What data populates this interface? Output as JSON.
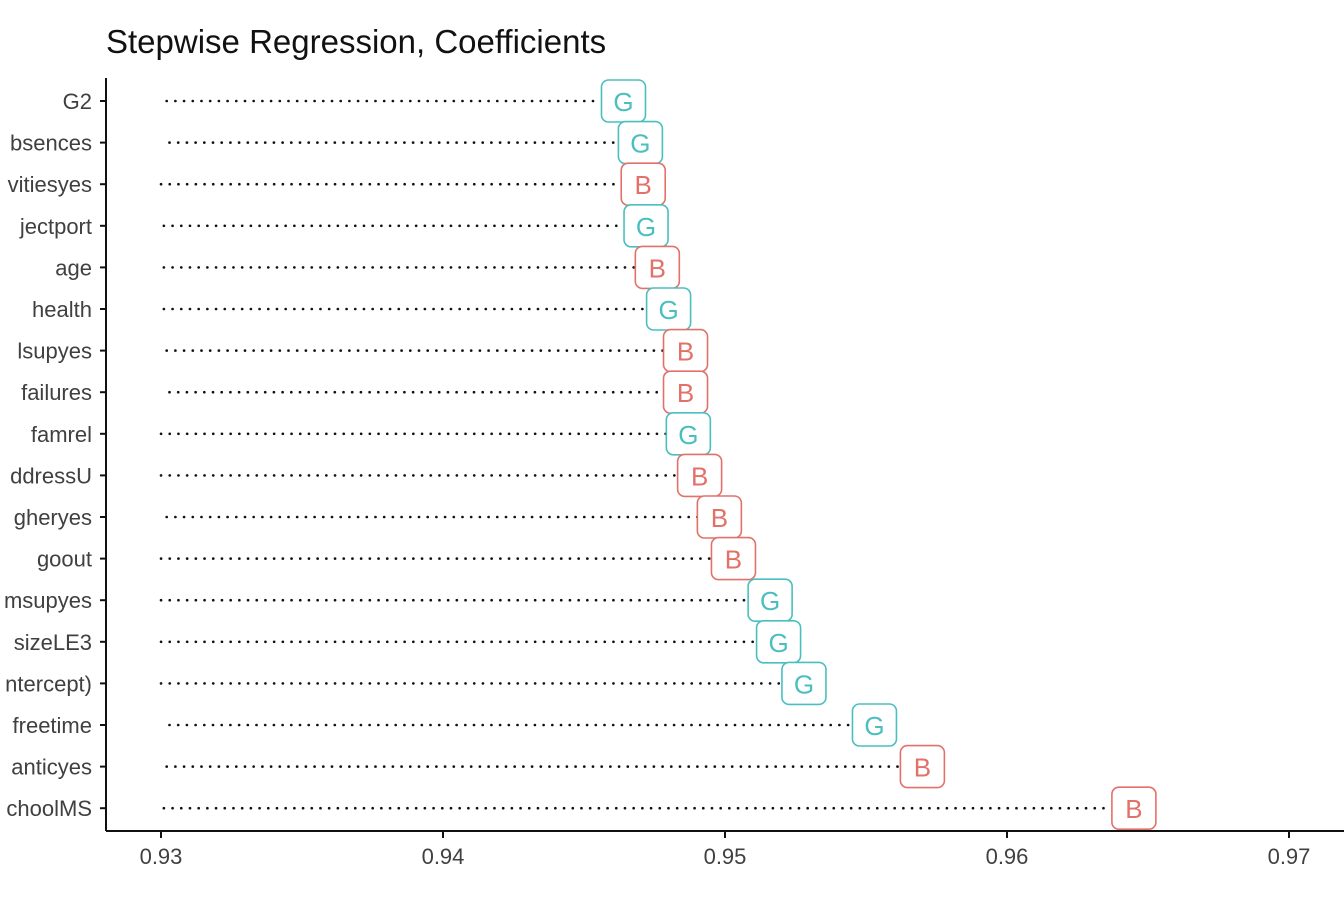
{
  "chart_data": {
    "type": "dot",
    "title": "Stepwise Regression, Coefficients",
    "xlabel": "",
    "ylabel": "",
    "xlim": [
      0.928,
      0.97
    ],
    "x_ticks": [
      0.93,
      0.94,
      0.95,
      0.96,
      0.97
    ],
    "x_tick_labels": [
      "0.93",
      "0.94",
      "0.95",
      "0.96",
      "0.97"
    ],
    "grid": false,
    "legend": "none",
    "colors": {
      "G": "#4bbfc0",
      "B": "#e2716a"
    },
    "points": [
      {
        "label": "G2",
        "value": 0.9464,
        "group": "G"
      },
      {
        "label": "bsences",
        "value": 0.947,
        "group": "G"
      },
      {
        "label": "vitiesyes",
        "value": 0.9471,
        "group": "B"
      },
      {
        "label": "jectport",
        "value": 0.9472,
        "group": "G"
      },
      {
        "label": "age",
        "value": 0.9476,
        "group": "B"
      },
      {
        "label": "health",
        "value": 0.948,
        "group": "G"
      },
      {
        "label": "lsupyes",
        "value": 0.9486,
        "group": "B"
      },
      {
        "label": "failures",
        "value": 0.9486,
        "group": "B"
      },
      {
        "label": "famrel",
        "value": 0.9487,
        "group": "G"
      },
      {
        "label": "ddressU",
        "value": 0.9491,
        "group": "B"
      },
      {
        "label": "gheryes",
        "value": 0.9498,
        "group": "B"
      },
      {
        "label": "goout",
        "value": 0.9503,
        "group": "B"
      },
      {
        "label": "msupyes",
        "value": 0.9516,
        "group": "G"
      },
      {
        "label": "sizeLE3",
        "value": 0.9519,
        "group": "G"
      },
      {
        "label": "ntercept)",
        "value": 0.9528,
        "group": "G"
      },
      {
        "label": "freetime",
        "value": 0.9553,
        "group": "G"
      },
      {
        "label": "anticyes",
        "value": 0.957,
        "group": "B"
      },
      {
        "label": "choolMS",
        "value": 0.9645,
        "group": "B"
      }
    ],
    "line_starts": [
      0.9302,
      0.9303,
      0.93,
      0.9301,
      0.9301,
      0.9301,
      0.9302,
      0.9303,
      0.93,
      0.93,
      0.9302,
      0.93,
      0.93,
      0.93,
      0.93,
      0.9303,
      0.9302,
      0.9301
    ]
  }
}
